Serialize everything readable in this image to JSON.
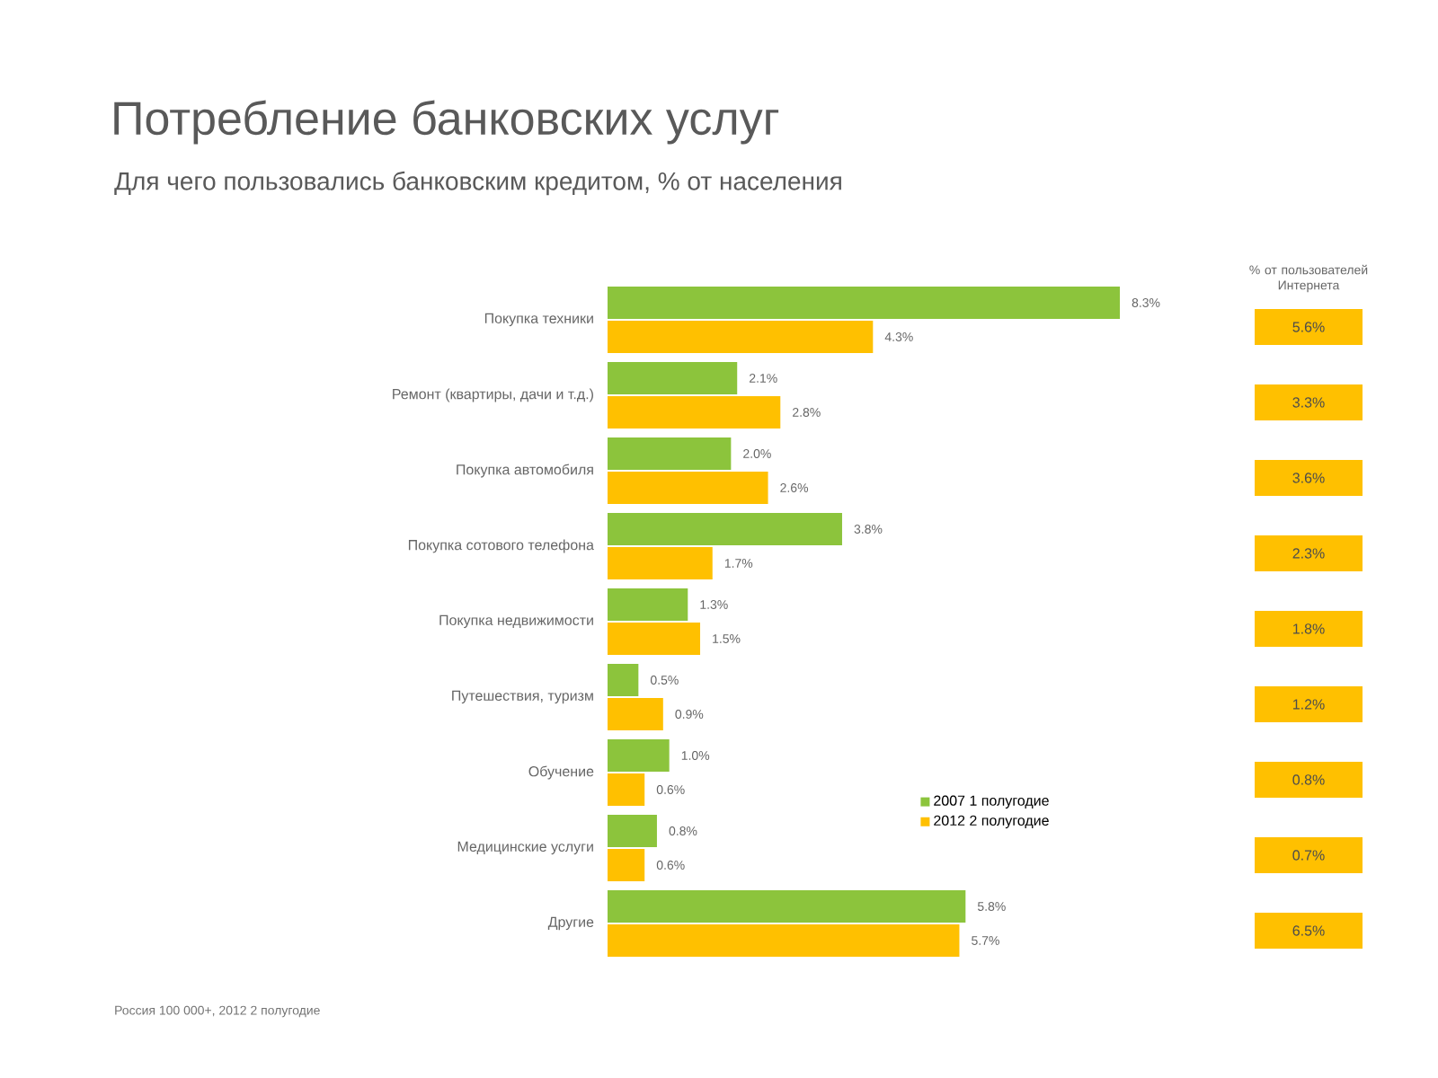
{
  "chart_data": [
    {
      "type": "bar",
      "orientation": "horizontal",
      "title": "Потребление банковских услуг",
      "subtitle": "Для чего пользовались банковским кредитом, % от населения",
      "categories": [
        "Покупка техники",
        "Ремонт (квартиры, дачи и т.д.)",
        "Покупка автомобиля",
        "Покупка сотового телефона",
        "Покупка недвижимости",
        "Путешествия, туризм",
        "Обучение",
        "Медицинские услуги",
        "Другие"
      ],
      "series": [
        {
          "name": "2007 1 полугодие",
          "color": "#8cc43c",
          "values": [
            8.3,
            2.1,
            2.0,
            3.8,
            1.3,
            0.5,
            1.0,
            0.8,
            5.8
          ],
          "value_labels": [
            "8.3%",
            "2.1%",
            "2.0%",
            "3.8%",
            "1.3%",
            "0.5%",
            "1.0%",
            "0.8%",
            "5.8%"
          ]
        },
        {
          "name": "2012 2 полугодие",
          "color": "#ffc000",
          "values": [
            4.3,
            2.8,
            2.6,
            1.7,
            1.5,
            0.9,
            0.6,
            0.6,
            5.7
          ],
          "value_labels": [
            "4.3%",
            "2.8%",
            "2.6%",
            "1.7%",
            "1.5%",
            "0.9%",
            "0.6%",
            "0.6%",
            "5.7%"
          ]
        }
      ],
      "tick_labels": "y",
      "legend": "bottom right",
      "annotations": [
        "Россия 100 000+, 2012 2 полугодие"
      ]
    },
    {
      "type": "other",
      "title": "% от пользователей Интернета",
      "color": "#ffc000",
      "annotations": [
        "5.6%",
        "3.3%",
        "3.6%",
        "2.3%",
        "1.8%",
        "1.2%",
        "0.8%",
        "0.7%",
        "6.5%"
      ]
    }
  ]
}
